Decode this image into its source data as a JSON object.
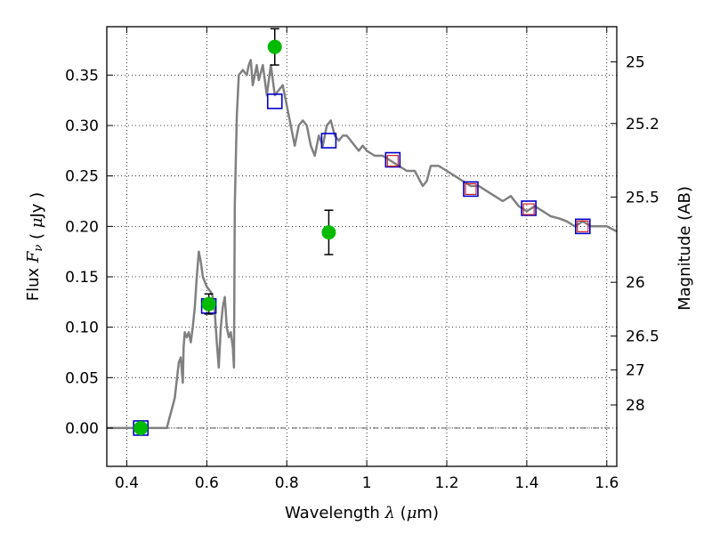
{
  "chart_data": {
    "type": "scatter",
    "xlabel": "Wavelength  λ (μm)",
    "ylabel": "Flux  F_ν  ( μJy )",
    "y2label": "Magnitude (AB)",
    "xlim": [
      0.35,
      1.625
    ],
    "ylim": [
      -0.038,
      0.398
    ],
    "grid": true,
    "x_ticks": [
      0.4,
      0.6,
      0.8,
      1.0,
      1.2,
      1.4,
      1.6
    ],
    "x_tick_labels": [
      "0.4",
      "0.6",
      "0.8",
      "1",
      "1.2",
      "1.4",
      "1.6"
    ],
    "y_ticks": [
      0.0,
      0.05,
      0.1,
      0.15,
      0.2,
      0.25,
      0.3,
      0.35
    ],
    "y_tick_labels": [
      "0.00",
      "0.05",
      "0.10",
      "0.15",
      "0.20",
      "0.25",
      "0.30",
      "0.35"
    ],
    "right_ticks": [
      {
        "mag": 25,
        "label": "25"
      },
      {
        "mag": 25.2,
        "label": "25.2"
      },
      {
        "mag": 25.5,
        "label": "25.5"
      },
      {
        "mag": 26,
        "label": "26"
      },
      {
        "mag": 26.5,
        "label": "26.5"
      },
      {
        "mag": 27,
        "label": "27"
      },
      {
        "mag": 28,
        "label": "28"
      }
    ],
    "series": [
      {
        "kind": "line",
        "color": "#808080",
        "x": [
          0.35,
          0.49,
          0.5,
          0.52,
          0.53,
          0.535,
          0.54,
          0.542,
          0.545,
          0.55,
          0.555,
          0.56,
          0.565,
          0.57,
          0.575,
          0.58,
          0.585,
          0.59,
          0.6,
          0.61,
          0.615,
          0.62,
          0.625,
          0.63,
          0.635,
          0.64,
          0.645,
          0.65,
          0.655,
          0.66,
          0.665,
          0.668,
          0.67,
          0.675,
          0.68,
          0.69,
          0.7,
          0.705,
          0.71,
          0.715,
          0.72,
          0.725,
          0.73,
          0.74,
          0.75,
          0.76,
          0.77,
          0.78,
          0.79,
          0.8,
          0.81,
          0.82,
          0.83,
          0.84,
          0.85,
          0.86,
          0.87,
          0.88,
          0.89,
          0.9,
          0.91,
          0.92,
          0.93,
          0.94,
          0.95,
          0.96,
          0.97,
          0.98,
          0.99,
          1.0,
          1.02,
          1.04,
          1.06,
          1.08,
          1.1,
          1.12,
          1.14,
          1.15,
          1.16,
          1.18,
          1.2,
          1.22,
          1.24,
          1.26,
          1.28,
          1.3,
          1.32,
          1.34,
          1.36,
          1.38,
          1.4,
          1.42,
          1.44,
          1.46,
          1.48,
          1.5,
          1.52,
          1.54,
          1.56,
          1.58,
          1.6,
          1.625
        ],
        "y": [
          0.0,
          0.0,
          0.0,
          0.03,
          0.065,
          0.07,
          0.045,
          0.08,
          0.095,
          0.09,
          0.095,
          0.085,
          0.1,
          0.12,
          0.15,
          0.175,
          0.165,
          0.15,
          0.14,
          0.135,
          0.13,
          0.115,
          0.085,
          0.06,
          0.1,
          0.12,
          0.13,
          0.1,
          0.09,
          0.095,
          0.08,
          0.06,
          0.22,
          0.31,
          0.35,
          0.355,
          0.35,
          0.36,
          0.365,
          0.34,
          0.35,
          0.36,
          0.345,
          0.36,
          0.33,
          0.36,
          0.33,
          0.335,
          0.34,
          0.32,
          0.3,
          0.28,
          0.3,
          0.305,
          0.3,
          0.28,
          0.27,
          0.29,
          0.28,
          0.3,
          0.305,
          0.29,
          0.285,
          0.29,
          0.29,
          0.285,
          0.28,
          0.275,
          0.28,
          0.275,
          0.27,
          0.27,
          0.265,
          0.26,
          0.255,
          0.255,
          0.24,
          0.245,
          0.26,
          0.26,
          0.255,
          0.25,
          0.245,
          0.24,
          0.24,
          0.235,
          0.23,
          0.225,
          0.23,
          0.22,
          0.215,
          0.22,
          0.215,
          0.21,
          0.208,
          0.205,
          0.2,
          0.205,
          0.2,
          0.2,
          0.2,
          0.195
        ]
      },
      {
        "kind": "markers",
        "marker": "square",
        "color": "#0000cc",
        "x": [
          0.435,
          0.605,
          0.77,
          0.905,
          1.065,
          1.26,
          1.405,
          1.54
        ],
        "y": [
          0.0,
          0.121,
          0.324,
          0.285,
          0.266,
          0.237,
          0.218,
          0.2
        ]
      },
      {
        "kind": "markers",
        "marker": "square",
        "color": "#cc2222",
        "size": "small",
        "x": [
          1.065,
          1.26,
          1.405,
          1.54
        ],
        "y": [
          0.265,
          0.237,
          0.217,
          0.2
        ]
      },
      {
        "kind": "markers",
        "marker": "circle",
        "color": "#00bb00",
        "x": [
          0.435,
          0.605,
          0.77,
          0.905
        ],
        "y": [
          0.0,
          0.123,
          0.378,
          0.194
        ],
        "yerr": [
          0.0,
          0.01,
          0.018,
          0.022
        ]
      }
    ]
  }
}
